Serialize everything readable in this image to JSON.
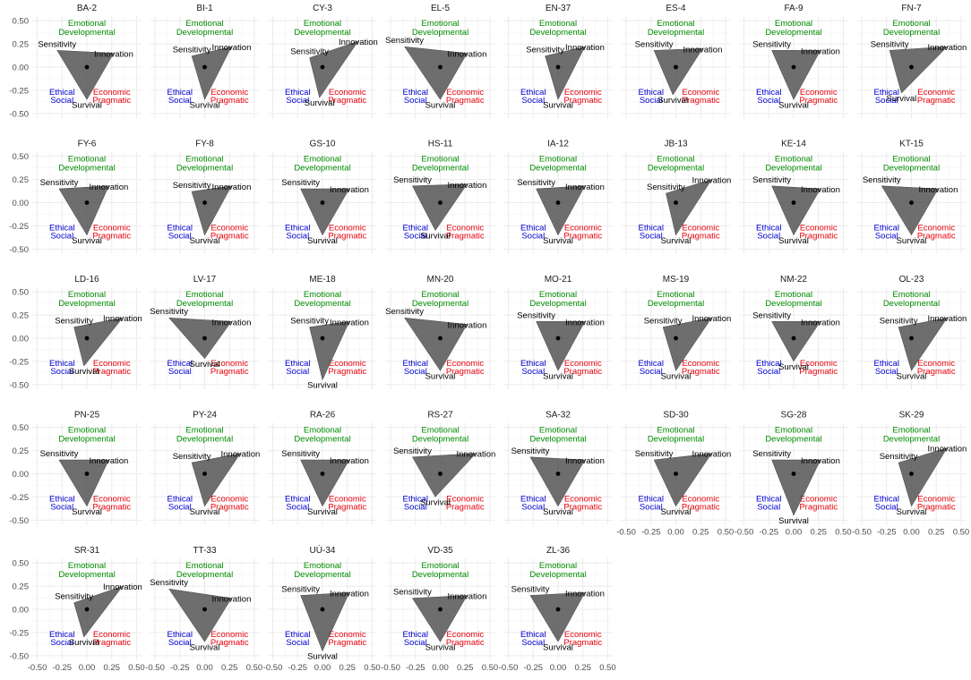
{
  "chart_data": {
    "type": "radar-triangle-facets",
    "tick_values": [
      -0.5,
      -0.25,
      0,
      0.25,
      0.5
    ],
    "tick_labels": [
      "-0.50",
      "-0.25",
      "0.00",
      "0.25",
      "0.50"
    ],
    "xlim": [
      -0.55,
      0.55
    ],
    "ylim": [
      -0.55,
      0.55
    ],
    "grid": true,
    "corner_labels": {
      "top": [
        "Emotional",
        "Developmental"
      ],
      "bottom_left": [
        "Ethical",
        "Social"
      ],
      "bottom_right": [
        "Economic",
        "Pragmatic"
      ]
    },
    "vertex_labels": {
      "sensitivity": "Sensitivity",
      "innovation": "Innovation",
      "survival": "Survival"
    },
    "colors": {
      "top": "#008b00",
      "bottom_left": "#0000d5",
      "bottom_right": "#e8000b",
      "polygon": "#555555",
      "grid": "#ebebeb"
    },
    "panels": [
      {
        "title": "BA-2",
        "sensitivity": [
          -0.3,
          0.18
        ],
        "innovation": [
          0.27,
          0.15
        ],
        "survival": [
          0.0,
          -0.35
        ]
      },
      {
        "title": "BI-1",
        "sensitivity": [
          -0.13,
          0.12
        ],
        "innovation": [
          0.27,
          0.22
        ],
        "survival": [
          0.0,
          -0.35
        ]
      },
      {
        "title": "CY-3",
        "sensitivity": [
          -0.13,
          0.1
        ],
        "innovation": [
          0.36,
          0.28
        ],
        "survival": [
          -0.03,
          -0.33
        ]
      },
      {
        "title": "EL-5",
        "sensitivity": [
          -0.36,
          0.22
        ],
        "innovation": [
          0.27,
          0.15
        ],
        "survival": [
          0.0,
          -0.35
        ]
      },
      {
        "title": "EN-37",
        "sensitivity": [
          -0.13,
          0.12
        ],
        "innovation": [
          0.27,
          0.22
        ],
        "survival": [
          0.0,
          -0.35
        ]
      },
      {
        "title": "ES-4",
        "sensitivity": [
          -0.22,
          0.18
        ],
        "innovation": [
          0.27,
          0.2
        ],
        "survival": [
          -0.03,
          -0.3
        ]
      },
      {
        "title": "FA-9",
        "sensitivity": [
          -0.22,
          0.18
        ],
        "innovation": [
          0.27,
          0.18
        ],
        "survival": [
          0.0,
          -0.35
        ]
      },
      {
        "title": "FN-7",
        "sensitivity": [
          -0.22,
          0.18
        ],
        "innovation": [
          0.36,
          0.22
        ],
        "survival": [
          -0.1,
          -0.28
        ]
      },
      {
        "title": "FY-6",
        "sensitivity": [
          -0.28,
          0.15
        ],
        "innovation": [
          0.22,
          0.18
        ],
        "survival": [
          0.0,
          -0.35
        ]
      },
      {
        "title": "FY-8",
        "sensitivity": [
          -0.13,
          0.12
        ],
        "innovation": [
          0.27,
          0.18
        ],
        "survival": [
          0.0,
          -0.35
        ]
      },
      {
        "title": "GS-10",
        "sensitivity": [
          -0.22,
          0.15
        ],
        "innovation": [
          0.27,
          0.15
        ],
        "survival": [
          0.0,
          -0.35
        ]
      },
      {
        "title": "HS-11",
        "sensitivity": [
          -0.28,
          0.18
        ],
        "innovation": [
          0.27,
          0.2
        ],
        "survival": [
          -0.05,
          -0.3
        ]
      },
      {
        "title": "IA-12",
        "sensitivity": [
          -0.22,
          0.15
        ],
        "innovation": [
          0.27,
          0.18
        ],
        "survival": [
          0.0,
          -0.35
        ]
      },
      {
        "title": "JB-13",
        "sensitivity": [
          -0.1,
          0.1
        ],
        "innovation": [
          0.36,
          0.25
        ],
        "survival": [
          0.0,
          -0.35
        ]
      },
      {
        "title": "KE-14",
        "sensitivity": [
          -0.22,
          0.18
        ],
        "innovation": [
          0.27,
          0.15
        ],
        "survival": [
          0.0,
          -0.35
        ]
      },
      {
        "title": "KT-15",
        "sensitivity": [
          -0.3,
          0.18
        ],
        "innovation": [
          0.27,
          0.15
        ],
        "survival": [
          0.0,
          -0.35
        ]
      },
      {
        "title": "LD-16",
        "sensitivity": [
          -0.13,
          0.12
        ],
        "innovation": [
          0.36,
          0.22
        ],
        "survival": [
          -0.03,
          -0.3
        ]
      },
      {
        "title": "LV-17",
        "sensitivity": [
          -0.36,
          0.22
        ],
        "innovation": [
          0.27,
          0.18
        ],
        "survival": [
          0.0,
          -0.22
        ]
      },
      {
        "title": "ME-18",
        "sensitivity": [
          -0.13,
          0.12
        ],
        "innovation": [
          0.27,
          0.18
        ],
        "survival": [
          0.0,
          -0.45
        ]
      },
      {
        "title": "MN-20",
        "sensitivity": [
          -0.36,
          0.22
        ],
        "innovation": [
          0.27,
          0.15
        ],
        "survival": [
          0.0,
          -0.35
        ]
      },
      {
        "title": "MO-21",
        "sensitivity": [
          -0.22,
          0.18
        ],
        "innovation": [
          0.27,
          0.18
        ],
        "survival": [
          0.0,
          -0.35
        ]
      },
      {
        "title": "MS-19",
        "sensitivity": [
          -0.13,
          0.12
        ],
        "innovation": [
          0.36,
          0.22
        ],
        "survival": [
          0.0,
          -0.35
        ]
      },
      {
        "title": "NM-22",
        "sensitivity": [
          -0.22,
          0.18
        ],
        "innovation": [
          0.27,
          0.18
        ],
        "survival": [
          0.0,
          -0.25
        ]
      },
      {
        "title": "OL-23",
        "sensitivity": [
          -0.13,
          0.12
        ],
        "innovation": [
          0.36,
          0.22
        ],
        "survival": [
          0.0,
          -0.35
        ]
      },
      {
        "title": "PN-25",
        "sensitivity": [
          -0.28,
          0.15
        ],
        "innovation": [
          0.22,
          0.15
        ],
        "survival": [
          0.0,
          -0.35
        ]
      },
      {
        "title": "PY-24",
        "sensitivity": [
          -0.13,
          0.12
        ],
        "innovation": [
          0.36,
          0.22
        ],
        "survival": [
          0.0,
          -0.35
        ]
      },
      {
        "title": "RA-26",
        "sensitivity": [
          -0.22,
          0.15
        ],
        "innovation": [
          0.27,
          0.15
        ],
        "survival": [
          0.0,
          -0.35
        ]
      },
      {
        "title": "RS-27",
        "sensitivity": [
          -0.28,
          0.18
        ],
        "innovation": [
          0.36,
          0.22
        ],
        "survival": [
          -0.05,
          -0.25
        ]
      },
      {
        "title": "SA-32",
        "sensitivity": [
          -0.28,
          0.18
        ],
        "innovation": [
          0.27,
          0.15
        ],
        "survival": [
          0.0,
          -0.35
        ]
      },
      {
        "title": "SD-30",
        "sensitivity": [
          -0.22,
          0.15
        ],
        "innovation": [
          0.36,
          0.22
        ],
        "survival": [
          0.0,
          -0.35
        ]
      },
      {
        "title": "SG-28",
        "sensitivity": [
          -0.22,
          0.15
        ],
        "innovation": [
          0.27,
          0.15
        ],
        "survival": [
          0.0,
          -0.45
        ]
      },
      {
        "title": "SK-29",
        "sensitivity": [
          -0.13,
          0.12
        ],
        "innovation": [
          0.36,
          0.28
        ],
        "survival": [
          0.0,
          -0.35
        ]
      },
      {
        "title": "SR-31",
        "sensitivity": [
          -0.13,
          0.07
        ],
        "innovation": [
          0.36,
          0.25
        ],
        "survival": [
          -0.03,
          -0.3
        ]
      },
      {
        "title": "TT-33",
        "sensitivity": [
          -0.36,
          0.22
        ],
        "innovation": [
          0.27,
          0.12
        ],
        "survival": [
          0.0,
          -0.35
        ]
      },
      {
        "title": "UÚ-34",
        "sensitivity": [
          -0.22,
          0.15
        ],
        "innovation": [
          0.27,
          0.18
        ],
        "survival": [
          0.0,
          -0.45
        ]
      },
      {
        "title": "VD-35",
        "sensitivity": [
          -0.28,
          0.12
        ],
        "innovation": [
          0.27,
          0.15
        ],
        "survival": [
          0.0,
          -0.35
        ]
      },
      {
        "title": "ZL-36",
        "sensitivity": [
          -0.28,
          0.15
        ],
        "innovation": [
          0.27,
          0.18
        ],
        "survival": [
          0.0,
          -0.35
        ]
      }
    ]
  }
}
